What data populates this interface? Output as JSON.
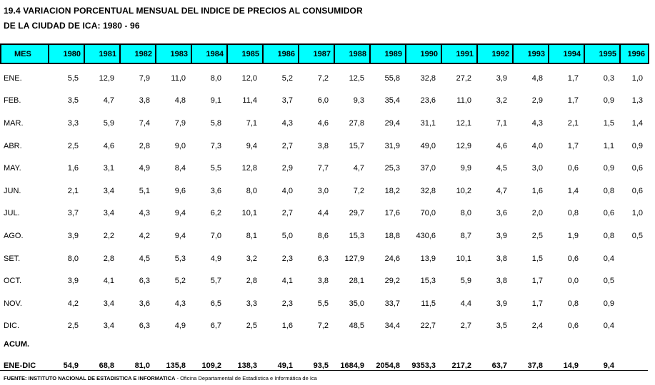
{
  "title": {
    "line1": "19.4 VARIACION PORCENTUAL MENSUAL DEL INDICE DE PRECIOS AL CONSUMIDOR",
    "line2": "DE LA CIUDAD DE ICA: 1980 - 96"
  },
  "header_color": "#00ffff",
  "columns": [
    "MES",
    "1980",
    "1981",
    "1982",
    "1983",
    "1984",
    "1985",
    "1986",
    "1987",
    "1988",
    "1989",
    "1990",
    "1991",
    "1992",
    "1993",
    "1994",
    "1995",
    "1996"
  ],
  "rows": [
    {
      "label": "ENE.",
      "values": [
        "5,5",
        "12,9",
        "7,9",
        "11,0",
        "8,0",
        "12,0",
        "5,2",
        "7,2",
        "12,5",
        "55,8",
        "32,8",
        "27,2",
        "3,9",
        "4,8",
        "1,7",
        "0,3",
        "1,0"
      ]
    },
    {
      "label": "FEB.",
      "values": [
        "3,5",
        "4,7",
        "3,8",
        "4,8",
        "9,1",
        "11,4",
        "3,7",
        "6,0",
        "9,3",
        "35,4",
        "23,6",
        "11,0",
        "3,2",
        "2,9",
        "1,7",
        "0,9",
        "1,3"
      ]
    },
    {
      "label": "MAR.",
      "values": [
        "3,3",
        "5,9",
        "7,4",
        "7,9",
        "5,8",
        "7,1",
        "4,3",
        "4,6",
        "27,8",
        "29,4",
        "31,1",
        "12,1",
        "7,1",
        "4,3",
        "2,1",
        "1,5",
        "1,4"
      ]
    },
    {
      "label": "ABR.",
      "values": [
        "2,5",
        "4,6",
        "2,8",
        "9,0",
        "7,3",
        "9,4",
        "2,7",
        "3,8",
        "15,7",
        "31,9",
        "49,0",
        "12,9",
        "4,6",
        "4,0",
        "1,7",
        "1,1",
        "0,9"
      ]
    },
    {
      "label": "MAY.",
      "values": [
        "1,6",
        "3,1",
        "4,9",
        "8,4",
        "5,5",
        "12,8",
        "2,9",
        "7,7",
        "4,7",
        "25,3",
        "37,0",
        "9,9",
        "4,5",
        "3,0",
        "0,6",
        "0,9",
        "0,6"
      ]
    },
    {
      "label": "JUN.",
      "values": [
        "2,1",
        "3,4",
        "5,1",
        "9,6",
        "3,6",
        "8,0",
        "4,0",
        "3,0",
        "7,2",
        "18,2",
        "32,8",
        "10,2",
        "4,7",
        "1,6",
        "1,4",
        "0,8",
        "0,6"
      ]
    },
    {
      "label": "JUL.",
      "values": [
        "3,7",
        "3,4",
        "4,3",
        "9,4",
        "6,2",
        "10,1",
        "2,7",
        "4,4",
        "29,7",
        "17,6",
        "70,0",
        "8,0",
        "3,6",
        "2,0",
        "0,8",
        "0,6",
        "1,0"
      ]
    },
    {
      "label": "AGO.",
      "values": [
        "3,9",
        "2,2",
        "4,2",
        "9,4",
        "7,0",
        "8,1",
        "5,0",
        "8,6",
        "15,3",
        "18,8",
        "430,6",
        "8,7",
        "3,9",
        "2,5",
        "1,9",
        "0,8",
        "0,5"
      ]
    },
    {
      "label": "SET.",
      "values": [
        "8,0",
        "2,8",
        "4,5",
        "5,3",
        "4,9",
        "3,2",
        "2,3",
        "6,3",
        "127,9",
        "24,6",
        "13,9",
        "10,1",
        "3,8",
        "1,5",
        "0,6",
        "0,4",
        ""
      ]
    },
    {
      "label": "OCT.",
      "values": [
        "3,9",
        "4,1",
        "6,3",
        "5,2",
        "5,7",
        "2,8",
        "4,1",
        "3,8",
        "28,1",
        "29,2",
        "15,3",
        "5,9",
        "3,8",
        "1,7",
        "0,0",
        "0,5",
        ""
      ]
    },
    {
      "label": "NOV.",
      "values": [
        "4,2",
        "3,4",
        "3,6",
        "4,3",
        "6,5",
        "3,3",
        "2,3",
        "5,5",
        "35,0",
        "33,7",
        "11,5",
        "4,4",
        "3,9",
        "1,7",
        "0,8",
        "0,9",
        ""
      ]
    },
    {
      "label": "DIC.",
      "values": [
        "2,5",
        "3,4",
        "6,3",
        "4,9",
        "6,7",
        "2,5",
        "1,6",
        "7,2",
        "48,5",
        "34,4",
        "22,7",
        "2,7",
        "3,5",
        "2,4",
        "0,6",
        "0,4",
        ""
      ]
    }
  ],
  "acum": {
    "label": "ACUM.",
    "sub_label": "ENE-DIC",
    "values": [
      "54,9",
      "68,8",
      "81,0",
      "135,8",
      "109,2",
      "138,3",
      "49,1",
      "93,5",
      "1684,9",
      "2054,8",
      "9353,3",
      "217,2",
      "63,7",
      "37,8",
      "14,9",
      "9,4",
      ""
    ]
  },
  "footer": {
    "source_bold": "FUENTE: INSTITUTO NACIONAL DE ESTADISTICA E INFORMATICA",
    "source_rest": " - Oficina Departamental de Estadística e Informática de Ica"
  }
}
